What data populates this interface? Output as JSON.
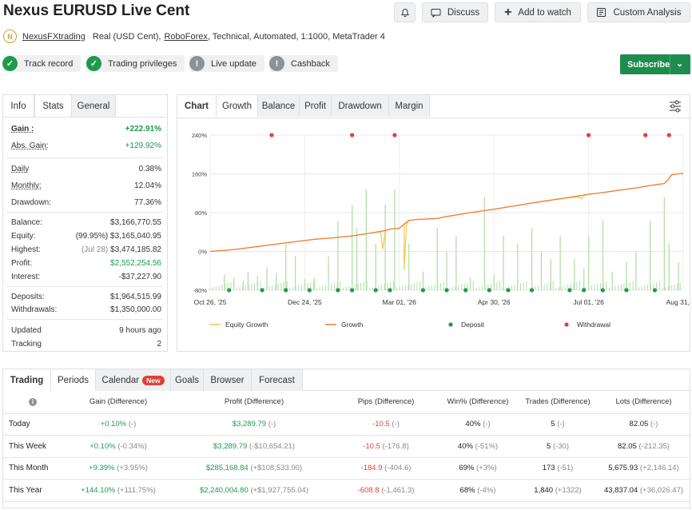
{
  "header": {
    "title": "Nexus EURUSD Live Cent",
    "discuss": "Discuss",
    "add_watch": "Add to watch",
    "custom_analysis": "Custom Analysis",
    "subscribe": "Subscribe"
  },
  "subtitle": {
    "author": "NexusFXtrading",
    "text1": "Real (USD Cent),",
    "broker": "RoboForex",
    "text2": ", Technical, Automated, 1:1000, MetaTrader 4"
  },
  "badges": [
    {
      "label": "Track record",
      "status": "ok"
    },
    {
      "label": "Trading privileges",
      "status": "ok"
    },
    {
      "label": "Live update",
      "status": "warn"
    },
    {
      "label": "Cashback",
      "status": "warn"
    }
  ],
  "left_tabs": [
    "Info",
    "Stats",
    "General"
  ],
  "stats": {
    "gain_label": "Gain :",
    "gain": "+222.91%",
    "abs_gain_label": "Abs. Gain:",
    "abs_gain": "+129.92%",
    "daily_label": "Daily",
    "daily": "0.38%",
    "monthly_label": "Monthly:",
    "monthly": "12.04%",
    "drawdown_label": "Drawdown:",
    "drawdown": "77.36%",
    "balance_label": "Balance:",
    "balance": "$3,166,770.55",
    "equity_label": "Equity:",
    "equity_pct": "(99.95%)",
    "equity": "$3,165,040.95",
    "highest_label": "Highest:",
    "highest_date": "(Jul 28)",
    "highest": "$3,474,185.82",
    "profit_label": "Profit:",
    "profit": "$2,552,254.56",
    "interest_label": "Interest:",
    "interest": "-$37,227.90",
    "deposits_label": "Deposits:",
    "deposits": "$1,964,515.99",
    "withdrawals_label": "Withdrawals:",
    "withdrawals": "$1,350,000.00",
    "updated_label": "Updated",
    "updated": "9 hours ago",
    "tracking_label": "Tracking",
    "tracking": "2"
  },
  "chart_tabs": [
    "Chart",
    "Growth",
    "Balance",
    "Profit",
    "Drawdown",
    "Margin"
  ],
  "chart_data": {
    "type": "line",
    "y_ticks": [
      "240%",
      "160%",
      "80%",
      "0%",
      "-80%"
    ],
    "ylim": [
      -80,
      240
    ],
    "x_ticks": [
      "Oct 26, '25",
      "Dec 24, '25",
      "Mar 01, '26",
      "Apr 30, '26",
      "Jul 01, '26",
      "Aug 31, '26"
    ],
    "legend": [
      "Equity Growth",
      "Growth",
      "Deposit",
      "Withdrawal"
    ],
    "colors": {
      "equity": "#f2c94c",
      "growth": "#ef7d3c",
      "deposit": "#1e9a4e",
      "withdrawal": "#e0403a",
      "bars": "#b5dea9"
    },
    "growth": [
      [
        0,
        0
      ],
      [
        0.03,
        2
      ],
      [
        0.06,
        5
      ],
      [
        0.1,
        10
      ],
      [
        0.14,
        15
      ],
      [
        0.18,
        20
      ],
      [
        0.22,
        25
      ],
      [
        0.26,
        28
      ],
      [
        0.3,
        32
      ],
      [
        0.34,
        38
      ],
      [
        0.37,
        43
      ],
      [
        0.38,
        46
      ],
      [
        0.4,
        48
      ],
      [
        0.41,
        56
      ],
      [
        0.42,
        64
      ],
      [
        0.44,
        66
      ],
      [
        0.48,
        68
      ],
      [
        0.5,
        72
      ],
      [
        0.55,
        80
      ],
      [
        0.6,
        87
      ],
      [
        0.65,
        95
      ],
      [
        0.7,
        103
      ],
      [
        0.75,
        110
      ],
      [
        0.8,
        118
      ],
      [
        0.82,
        120
      ],
      [
        0.87,
        127
      ],
      [
        0.9,
        131
      ],
      [
        0.93,
        136
      ],
      [
        0.96,
        140
      ],
      [
        0.97,
        150
      ],
      [
        0.975,
        158
      ],
      [
        0.99,
        160
      ],
      [
        1.0,
        161
      ]
    ],
    "equity_dips": [
      [
        0.36,
        40
      ],
      [
        0.365,
        5
      ],
      [
        0.37,
        42
      ],
      [
        0.405,
        52
      ],
      [
        0.41,
        -38
      ],
      [
        0.415,
        55
      ],
      [
        0.78,
        113
      ],
      [
        0.785,
        108
      ],
      [
        0.79,
        115
      ]
    ],
    "withdrawals_x": [
      0.13,
      0.3,
      0.39,
      0.8,
      0.92,
      0.97
    ],
    "deposits_x": [
      0.04,
      0.11,
      0.16,
      0.21,
      0.27,
      0.3,
      0.35,
      0.38,
      0.45,
      0.5,
      0.54,
      0.59,
      0.63,
      0.68,
      0.76,
      0.79,
      0.83,
      0.88,
      0.94
    ],
    "bars": [
      [
        0.03,
        10
      ],
      [
        0.05,
        8
      ],
      [
        0.07,
        6
      ],
      [
        0.08,
        12
      ],
      [
        0.1,
        9
      ],
      [
        0.12,
        15
      ],
      [
        0.14,
        11
      ],
      [
        0.16,
        30
      ],
      [
        0.18,
        22
      ],
      [
        0.2,
        7
      ],
      [
        0.22,
        8
      ],
      [
        0.25,
        22
      ],
      [
        0.27,
        45
      ],
      [
        0.3,
        55
      ],
      [
        0.31,
        40
      ],
      [
        0.33,
        65
      ],
      [
        0.35,
        30
      ],
      [
        0.37,
        55
      ],
      [
        0.39,
        65
      ],
      [
        0.42,
        30
      ],
      [
        0.45,
        12
      ],
      [
        0.48,
        40
      ],
      [
        0.5,
        25
      ],
      [
        0.52,
        35
      ],
      [
        0.55,
        8
      ],
      [
        0.58,
        60
      ],
      [
        0.6,
        10
      ],
      [
        0.62,
        35
      ],
      [
        0.65,
        30
      ],
      [
        0.68,
        40
      ],
      [
        0.7,
        25
      ],
      [
        0.72,
        20
      ],
      [
        0.74,
        35
      ],
      [
        0.77,
        20
      ],
      [
        0.79,
        14
      ],
      [
        0.8,
        35
      ],
      [
        0.83,
        45
      ],
      [
        0.85,
        12
      ],
      [
        0.88,
        18
      ],
      [
        0.9,
        25
      ],
      [
        0.93,
        45
      ],
      [
        0.96,
        60
      ],
      [
        0.97,
        30
      ],
      [
        0.99,
        18
      ]
    ]
  },
  "periods_tabs": [
    "Trading",
    "Periods",
    "Calendar",
    "Goals",
    "Browser",
    "Forecast"
  ],
  "calendar_badge": "New",
  "periods_table": {
    "headers": [
      "",
      "Gain (Difference)",
      "Profit (Difference)",
      "Pips (Difference)",
      "Win% (Difference)",
      "Trades (Difference)",
      "Lots (Difference)"
    ],
    "rows": [
      {
        "label": "Today",
        "gain": "+0.10%",
        "gain_d": "(-)",
        "profit": "$3,289.79",
        "profit_d": "(-)",
        "pips": "-10.5",
        "pips_d": "(-)",
        "win": "40%",
        "win_d": "(-)",
        "trades": "5",
        "trades_d": "(-)",
        "lots": "82.05",
        "lots_d": "(-)"
      },
      {
        "label": "This Week",
        "gain": "+0.10%",
        "gain_d": "(-0.34%)",
        "profit": "$3,289.79",
        "profit_d": "(-$10,654.21)",
        "pips": "-10.5",
        "pips_d": "(-176.8)",
        "win": "40%",
        "win_d": "(-51%)",
        "trades": "5",
        "trades_d": "(-30)",
        "lots": "82.05",
        "lots_d": "(-212.35)"
      },
      {
        "label": "This Month",
        "gain": "+9.39%",
        "gain_d": "(+3.95%)",
        "profit": "$285,168.84",
        "profit_d": "(+$108,533.00)",
        "pips": "-184.9",
        "pips_d": "(-404.6)",
        "win": "69%",
        "win_d": "(+3%)",
        "trades": "173",
        "trades_d": "(-51)",
        "lots": "5,675.93",
        "lots_d": "(+2,146.14)"
      },
      {
        "label": "This Year",
        "gain": "+144.10%",
        "gain_d": "(+111.75%)",
        "profit": "$2,240,004.80",
        "profit_d": "(+$1,927,755.04)",
        "pips": "-608.8",
        "pips_d": "(-1,461.3)",
        "win": "68%",
        "win_d": "(-4%)",
        "trades": "1,840",
        "trades_d": "(+1322)",
        "lots": "43,837.04",
        "lots_d": "(+36,026.47)"
      }
    ]
  }
}
